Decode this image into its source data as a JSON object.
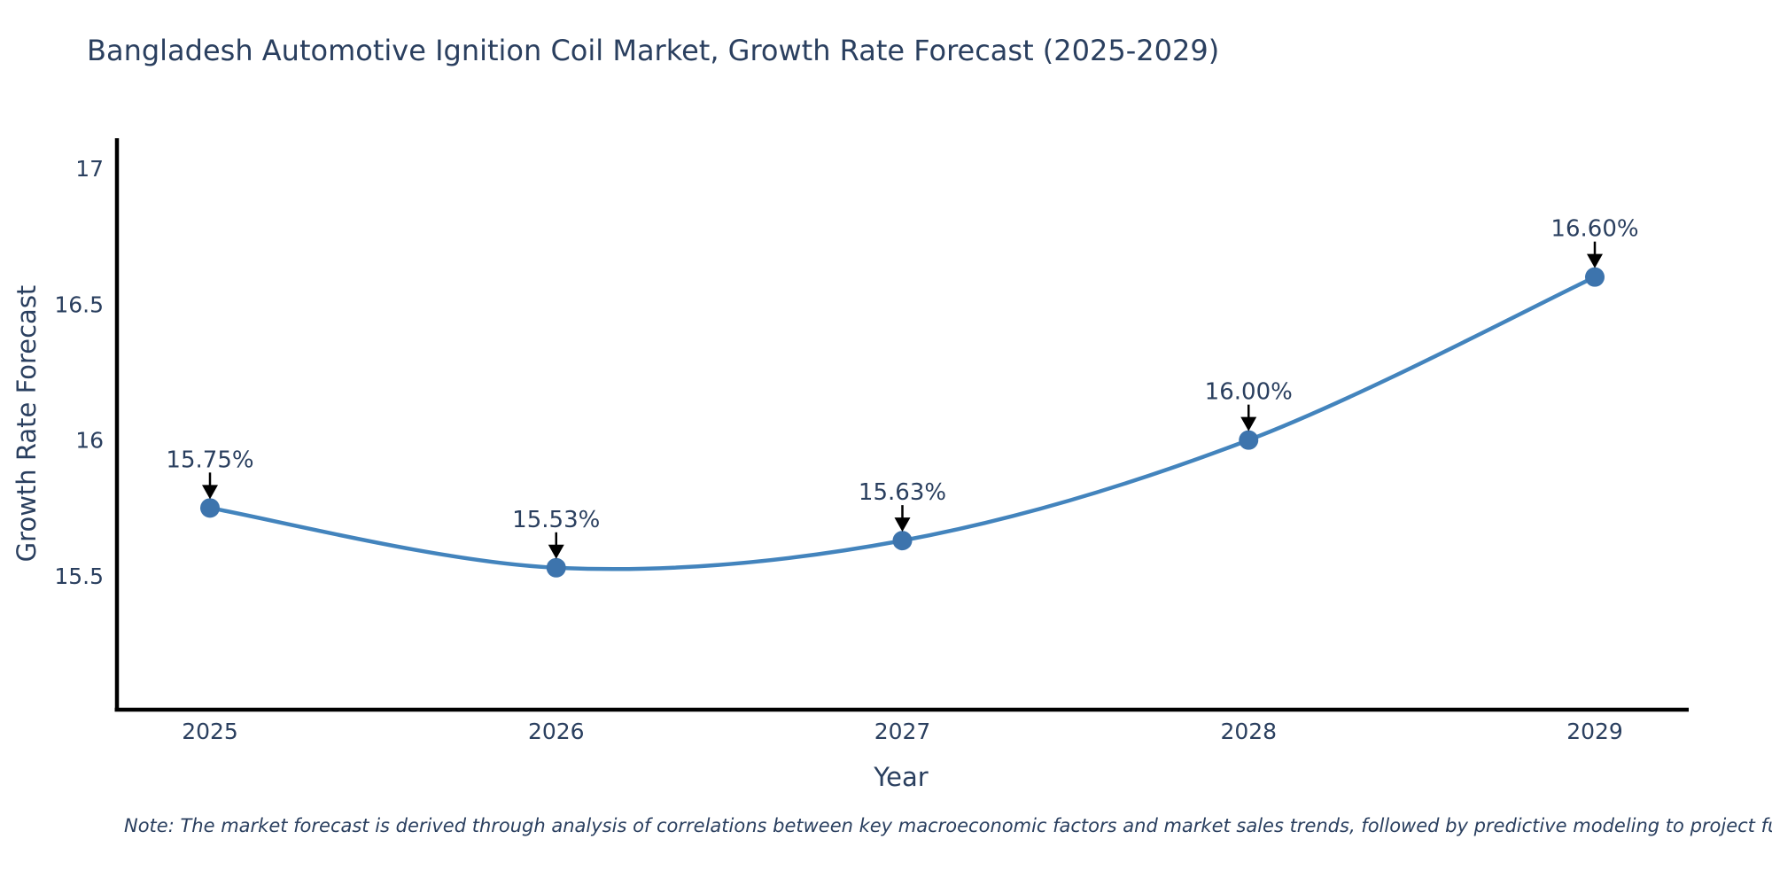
{
  "title": "Bangladesh Automotive Ignition Coil Market, Growth Rate Forecast (2025-2029)",
  "note": "Note: The market forecast is derived through analysis of correlations between key macroeconomic factors and market sales trends, followed by predictive modeling to project future sales",
  "chart_data": {
    "type": "line",
    "title": "Bangladesh Automotive Ignition Coil Market, Growth Rate Forecast (2025-2029)",
    "xlabel": "Year",
    "ylabel": "Growth Rate Forecast",
    "x": [
      2025,
      2026,
      2027,
      2028,
      2029
    ],
    "categories": [
      "2025",
      "2026",
      "2027",
      "2028",
      "2029"
    ],
    "values": [
      15.75,
      15.53,
      15.63,
      16.0,
      16.6
    ],
    "point_labels": [
      "15.75%",
      "15.53%",
      "15.63%",
      "16.00%",
      "16.60%"
    ],
    "y_ticks": [
      17,
      16.5,
      16,
      15.5
    ],
    "y_tick_labels": [
      "17",
      "16.5",
      "16",
      "15.5"
    ],
    "ylim": [
      15.0,
      17.1
    ],
    "grid": false,
    "legend": "none",
    "line_shape": "spline",
    "annotations": "value labels with downward black arrows at each point",
    "colors": {
      "line": "#4384bd",
      "marker": "#3d74ad",
      "text": "#2a3f5f",
      "axis": "#000000",
      "arrow": "#000000",
      "background": "#ffffff"
    }
  }
}
